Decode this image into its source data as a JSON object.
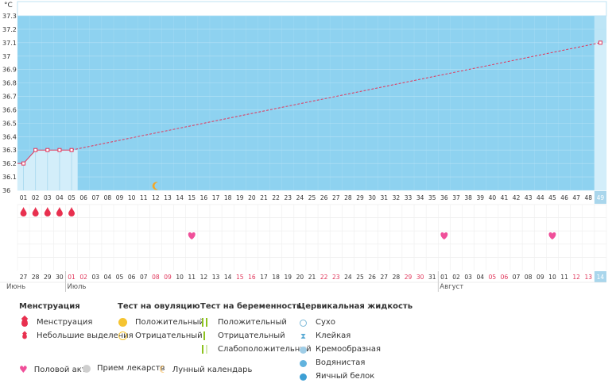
{
  "chart_data": {
    "type": "line",
    "unit": "°C",
    "y_ticks": [
      "36",
      "36.1",
      "36.2",
      "36.3",
      "36.4",
      "36.5",
      "36.6",
      "36.7",
      "36.8",
      "36.9",
      "37",
      "37.1",
      "37.2",
      "37.3"
    ],
    "ylim": [
      36,
      37.3
    ],
    "cycle_days": [
      "01",
      "02",
      "03",
      "04",
      "05",
      "06",
      "07",
      "08",
      "09",
      "10",
      "11",
      "12",
      "13",
      "14",
      "15",
      "16",
      "17",
      "18",
      "19",
      "20",
      "21",
      "22",
      "23",
      "24",
      "25",
      "26",
      "27",
      "28",
      "29",
      "30",
      "31",
      "32",
      "33",
      "34",
      "35",
      "36",
      "37",
      "38",
      "39",
      "40",
      "41",
      "42",
      "43",
      "44",
      "45",
      "46",
      "47",
      "48",
      "49"
    ],
    "highlight_cycle_day": "49",
    "series": [
      {
        "points": [
          {
            "day": 1,
            "temp": 36.2
          },
          {
            "day": 2,
            "temp": 36.3
          },
          {
            "day": 3,
            "temp": 36.3
          },
          {
            "day": 4,
            "temp": 36.3
          },
          {
            "day": 5,
            "temp": 36.3
          },
          {
            "day": 49,
            "temp": 37.1
          }
        ]
      }
    ],
    "measured_days": [
      1,
      2,
      3,
      4,
      5,
      49
    ],
    "menstruation_days": [
      1,
      2,
      3,
      4,
      5
    ],
    "intercourse_days": [
      15,
      36,
      45
    ],
    "moon_day": 12,
    "dates": [
      "27",
      "28",
      "29",
      "30",
      "01",
      "02",
      "03",
      "04",
      "05",
      "06",
      "07",
      "08",
      "09",
      "10",
      "11",
      "12",
      "13",
      "14",
      "15",
      "16",
      "17",
      "18",
      "19",
      "20",
      "21",
      "22",
      "23",
      "24",
      "25",
      "26",
      "27",
      "28",
      "29",
      "30",
      "31",
      "01",
      "02",
      "03",
      "04",
      "05",
      "06",
      "07",
      "08",
      "09",
      "10",
      "11",
      "12",
      "13",
      "14"
    ],
    "red_dates": [
      5,
      6,
      12,
      13,
      19,
      20,
      26,
      27,
      33,
      34,
      40,
      41,
      47,
      48
    ],
    "months": [
      {
        "label": "Июнь",
        "start": 1
      },
      {
        "label": "Июль",
        "start": 5
      },
      {
        "label": "Август",
        "start": 36
      }
    ]
  },
  "legend": {
    "menstruation": {
      "title": "Менструация",
      "items": [
        "Менструация",
        "Небольшие выделения"
      ]
    },
    "ovulation": {
      "title": "Тест на овуляцию",
      "items": [
        "Положительный",
        "Отрицательный"
      ]
    },
    "pregnancy": {
      "title": "Тест на беременность",
      "items": [
        "Положительный",
        "Отрицательный",
        "Слабоположительный"
      ]
    },
    "cervical": {
      "title": "Цервикальная жидкость",
      "items": [
        "Сухо",
        "Клейкая",
        "Кремообразная",
        "Водянистая",
        "Яичный белок"
      ]
    },
    "bottom": [
      "Половой акт",
      "Прием лекарств",
      "Лунный календарь"
    ]
  },
  "colors": {
    "plot_bg": "#8ed2f0",
    "grid": "#b7e3f6",
    "line": "#e0355a",
    "fill": "#d3eefa",
    "highlight": "#bde5f6",
    "menstruation": "#e8304f",
    "heart": "#f0509a",
    "moon": "#f5a623",
    "weekend": "#e0355a",
    "pregnancy": "#8dc21f"
  }
}
